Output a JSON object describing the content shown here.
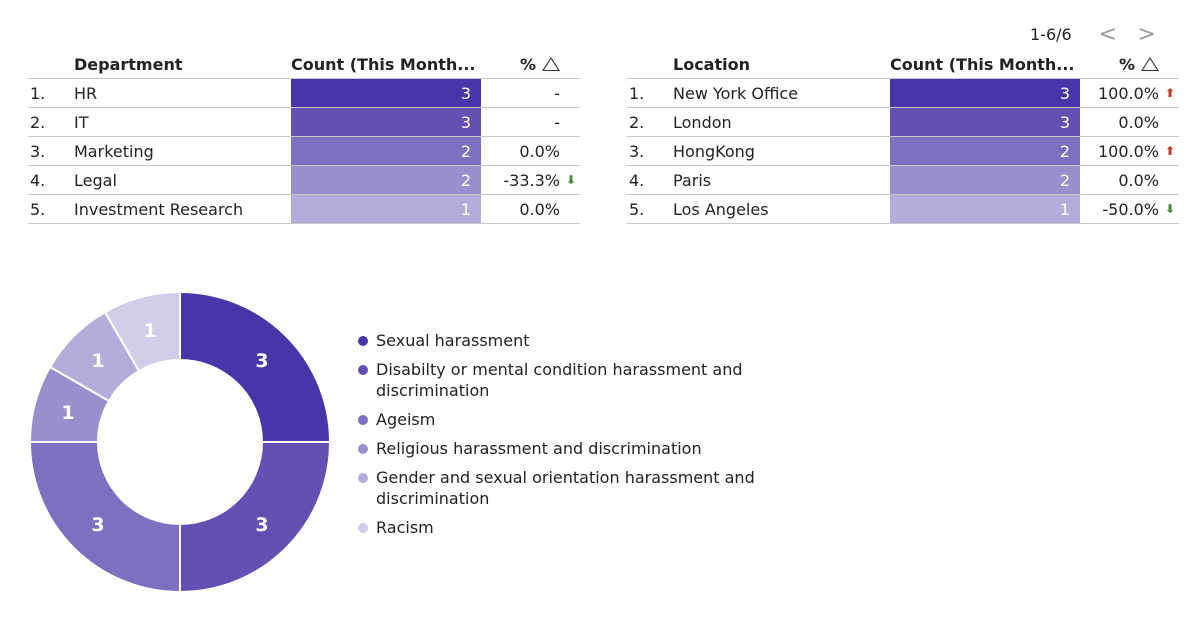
{
  "pager": {
    "range": "1-6/6",
    "prev": "<",
    "next": ">"
  },
  "colors": {
    "bar_shades": [
      "#4a35a8",
      "#6450b2",
      "#7f6fc0",
      "#9a8ecd",
      "#b5acdc",
      "#d3cde9"
    ],
    "arrow_up": "#c0392b",
    "arrow_down": "#4a8a3a"
  },
  "department_table": {
    "headers": {
      "name": "Department",
      "count": "Count (This Month...",
      "pct": "%"
    },
    "rows": [
      {
        "idx": "1.",
        "name": "HR",
        "count": 3,
        "pct": "-",
        "trend": ""
      },
      {
        "idx": "2.",
        "name": "IT",
        "count": 3,
        "pct": "-",
        "trend": ""
      },
      {
        "idx": "3.",
        "name": "Marketing",
        "count": 2,
        "pct": "0.0%",
        "trend": ""
      },
      {
        "idx": "4.",
        "name": "Legal",
        "count": 2,
        "pct": "-33.3%",
        "trend": "down"
      },
      {
        "idx": "5.",
        "name": "Investment Research",
        "count": 1,
        "pct": "0.0%",
        "trend": ""
      }
    ]
  },
  "location_table": {
    "headers": {
      "name": "Location",
      "count": "Count (This Month...",
      "pct": "%"
    },
    "rows": [
      {
        "idx": "1.",
        "name": "New York Office",
        "count": 3,
        "pct": "100.0%",
        "trend": "up"
      },
      {
        "idx": "2.",
        "name": "London",
        "count": 3,
        "pct": "0.0%",
        "trend": ""
      },
      {
        "idx": "3.",
        "name": "HongKong",
        "count": 2,
        "pct": "100.0%",
        "trend": "up"
      },
      {
        "idx": "4.",
        "name": "Paris",
        "count": 2,
        "pct": "0.0%",
        "trend": ""
      },
      {
        "idx": "5.",
        "name": "Los Angeles",
        "count": 1,
        "pct": "-50.0%",
        "trend": "down"
      }
    ]
  },
  "chart_data": {
    "type": "pie",
    "variant": "donut",
    "categories": [
      "Sexual harassment",
      "Disabilty or mental condition harassment and discrimination",
      "Ageism",
      "Religious harassment and discrimination",
      "Gender and sexual orientation harassment and discrimination",
      "Racism"
    ],
    "values": [
      3,
      3,
      3,
      1,
      1,
      1
    ],
    "colors": [
      "#4a35a8",
      "#6450b2",
      "#7f6fc0",
      "#9a8ecd",
      "#b5acdc",
      "#d3cde9"
    ],
    "legend_position": "right"
  }
}
